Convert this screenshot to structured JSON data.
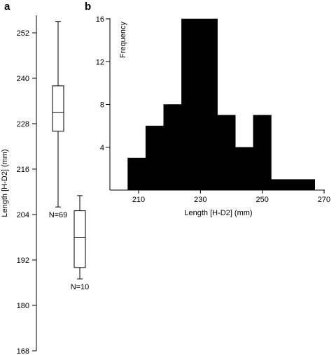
{
  "chart_data": [
    {
      "panel": "a",
      "type": "box",
      "ylabel": "Length  [H-D2] (mm)",
      "ylim": [
        168,
        255
      ],
      "yticks": [
        168,
        180,
        192,
        204,
        216,
        228,
        240,
        252
      ],
      "boxes": [
        {
          "label": "N=69",
          "min": 206,
          "q1": 226,
          "median": 231,
          "q3": 238,
          "max": 255
        },
        {
          "label": "N=10",
          "min": 187,
          "q1": 190,
          "median": 198,
          "q3": 205,
          "max": 209
        }
      ]
    },
    {
      "panel": "b",
      "type": "histogram",
      "xlabel": "Length [H-D2] (mm)",
      "ylabel": "Frequency",
      "xlim": [
        200,
        270
      ],
      "ylim": [
        0,
        16
      ],
      "xticks": [
        210,
        230,
        250,
        270
      ],
      "yticks": [
        4,
        8,
        12,
        16
      ],
      "bins": [
        {
          "start": 206.5,
          "end": 212.3,
          "count": 3
        },
        {
          "start": 212.3,
          "end": 218.1,
          "count": 6
        },
        {
          "start": 218.1,
          "end": 223.9,
          "count": 8
        },
        {
          "start": 223.9,
          "end": 235.5,
          "count": 16
        },
        {
          "start": 235.5,
          "end": 241.3,
          "count": 7
        },
        {
          "start": 241.3,
          "end": 247.1,
          "count": 4
        },
        {
          "start": 247.1,
          "end": 252.9,
          "count": 7
        },
        {
          "start": 252.9,
          "end": 267.0,
          "count": 1
        }
      ]
    }
  ]
}
